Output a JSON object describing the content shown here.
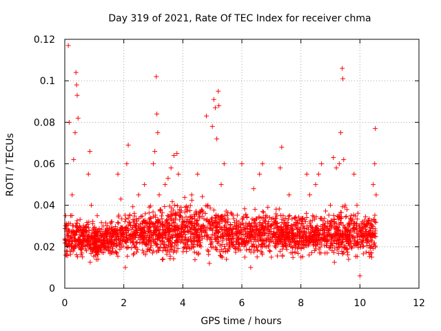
{
  "chart_data": {
    "type": "scatter",
    "title": "Day 319 of 2021, Rate Of TEC Index for receiver chma",
    "xlabel": "GPS time / hours",
    "ylabel": "ROTI / TECUs",
    "xlim": [
      0,
      12
    ],
    "ylim": [
      0,
      0.12
    ],
    "x_ticks": [
      "0",
      "2",
      "4",
      "6",
      "8",
      "10",
      "12"
    ],
    "y_ticks": [
      "0",
      "0.02",
      "0.04",
      "0.06",
      "0.08",
      "0.1",
      "0.12"
    ],
    "grid": true,
    "marker": "+",
    "color": "#ff0000",
    "series": [
      {
        "points": [
          [
            0.05,
            0.018
          ],
          [
            0.1,
            0.025
          ],
          [
            0.12,
            0.117
          ],
          [
            0.15,
            0.08
          ],
          [
            0.2,
            0.035
          ],
          [
            0.25,
            0.045
          ],
          [
            0.3,
            0.062
          ],
          [
            0.35,
            0.075
          ],
          [
            0.38,
            0.104
          ],
          [
            0.4,
            0.098
          ],
          [
            0.42,
            0.093
          ],
          [
            0.45,
            0.082
          ],
          [
            0.5,
            0.03
          ],
          [
            0.6,
            0.02
          ],
          [
            0.7,
            0.028
          ],
          [
            0.8,
            0.055
          ],
          [
            0.85,
            0.066
          ],
          [
            0.9,
            0.04
          ],
          [
            1.0,
            0.022
          ],
          [
            1.1,
            0.035
          ],
          [
            1.2,
            0.018
          ],
          [
            1.3,
            0.03
          ],
          [
            1.4,
            0.025
          ],
          [
            1.5,
            0.02
          ],
          [
            1.6,
            0.032
          ],
          [
            1.7,
            0.028
          ],
          [
            1.8,
            0.055
          ],
          [
            1.9,
            0.043
          ],
          [
            2.0,
            0.025
          ],
          [
            2.05,
            0.01
          ],
          [
            2.1,
            0.06
          ],
          [
            2.15,
            0.069
          ],
          [
            2.2,
            0.035
          ],
          [
            2.3,
            0.022
          ],
          [
            2.4,
            0.03
          ],
          [
            2.5,
            0.045
          ],
          [
            2.6,
            0.025
          ],
          [
            2.7,
            0.05
          ],
          [
            2.8,
            0.03
          ],
          [
            2.9,
            0.027
          ],
          [
            3.0,
            0.06
          ],
          [
            3.05,
            0.066
          ],
          [
            3.1,
            0.102
          ],
          [
            3.12,
            0.084
          ],
          [
            3.15,
            0.075
          ],
          [
            3.2,
            0.045
          ],
          [
            3.3,
            0.032
          ],
          [
            3.4,
            0.05
          ],
          [
            3.5,
            0.053
          ],
          [
            3.6,
            0.058
          ],
          [
            3.7,
            0.064
          ],
          [
            3.8,
            0.065
          ],
          [
            3.85,
            0.055
          ],
          [
            3.9,
            0.035
          ],
          [
            4.0,
            0.025
          ],
          [
            4.1,
            0.03
          ],
          [
            4.2,
            0.02
          ],
          [
            4.3,
            0.045
          ],
          [
            4.4,
            0.03
          ],
          [
            4.5,
            0.055
          ],
          [
            4.6,
            0.022
          ],
          [
            4.7,
            0.03
          ],
          [
            4.8,
            0.083
          ],
          [
            4.85,
            0.04
          ],
          [
            4.9,
            0.012
          ],
          [
            5.0,
            0.078
          ],
          [
            5.05,
            0.091
          ],
          [
            5.1,
            0.087
          ],
          [
            5.15,
            0.072
          ],
          [
            5.2,
            0.095
          ],
          [
            5.22,
            0.088
          ],
          [
            5.3,
            0.05
          ],
          [
            5.4,
            0.06
          ],
          [
            5.5,
            0.035
          ],
          [
            5.6,
            0.02
          ],
          [
            5.7,
            0.025
          ],
          [
            5.8,
            0.03
          ],
          [
            5.9,
            0.02
          ],
          [
            6.0,
            0.06
          ],
          [
            6.1,
            0.015
          ],
          [
            6.2,
            0.025
          ],
          [
            6.3,
            0.01
          ],
          [
            6.4,
            0.048
          ],
          [
            6.5,
            0.02
          ],
          [
            6.6,
            0.055
          ],
          [
            6.7,
            0.06
          ],
          [
            6.8,
            0.035
          ],
          [
            6.9,
            0.02
          ],
          [
            7.0,
            0.015
          ],
          [
            7.1,
            0.025
          ],
          [
            7.2,
            0.03
          ],
          [
            7.3,
            0.058
          ],
          [
            7.35,
            0.068
          ],
          [
            7.4,
            0.035
          ],
          [
            7.5,
            0.02
          ],
          [
            7.6,
            0.045
          ],
          [
            7.7,
            0.03
          ],
          [
            7.8,
            0.025
          ],
          [
            7.9,
            0.02
          ],
          [
            8.0,
            0.015
          ],
          [
            8.1,
            0.03
          ],
          [
            8.2,
            0.055
          ],
          [
            8.3,
            0.045
          ],
          [
            8.4,
            0.035
          ],
          [
            8.5,
            0.05
          ],
          [
            8.6,
            0.055
          ],
          [
            8.7,
            0.06
          ],
          [
            8.8,
            0.03
          ],
          [
            8.9,
            0.025
          ],
          [
            9.0,
            0.04
          ],
          [
            9.1,
            0.063
          ],
          [
            9.2,
            0.058
          ],
          [
            9.3,
            0.06
          ],
          [
            9.35,
            0.075
          ],
          [
            9.4,
            0.106
          ],
          [
            9.42,
            0.101
          ],
          [
            9.45,
            0.062
          ],
          [
            9.5,
            0.04
          ],
          [
            9.6,
            0.025
          ],
          [
            9.7,
            0.035
          ],
          [
            9.8,
            0.055
          ],
          [
            9.9,
            0.04
          ],
          [
            10.0,
            0.006
          ],
          [
            10.1,
            0.02
          ],
          [
            10.2,
            0.03
          ],
          [
            10.3,
            0.025
          ],
          [
            10.4,
            0.015
          ],
          [
            10.45,
            0.05
          ],
          [
            10.5,
            0.06
          ],
          [
            10.52,
            0.077
          ],
          [
            10.55,
            0.045
          ]
        ],
        "band": {
          "x_start": 0.0,
          "x_end": 10.55,
          "low": [
            0.012,
            0.012,
            0.011,
            0.012,
            0.013,
            0.013,
            0.012,
            0.011,
            0.012,
            0.013,
            0.012,
            0.011,
            0.012,
            0.013,
            0.012,
            0.012,
            0.013,
            0.012,
            0.011,
            0.012,
            0.012
          ],
          "high": [
            0.038,
            0.036,
            0.035,
            0.036,
            0.04,
            0.042,
            0.042,
            0.044,
            0.046,
            0.045,
            0.043,
            0.04,
            0.04,
            0.041,
            0.04,
            0.039,
            0.038,
            0.04,
            0.041,
            0.04,
            0.038
          ],
          "count": 2400
        }
      }
    ]
  }
}
